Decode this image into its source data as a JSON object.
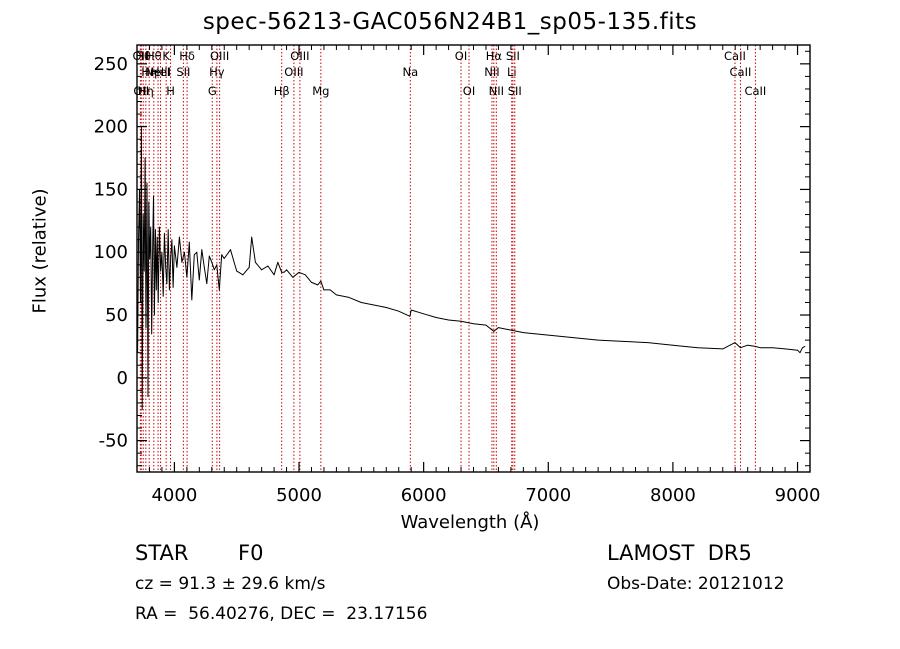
{
  "title": "spec-56213-GAC056N24B1_sp05-135.fits",
  "info": {
    "class_label": "STAR",
    "subclass_label": "F0",
    "survey_label": "LAMOST  DR5",
    "redshift_text": "cz = 91.3 ± 29.6 km/s",
    "obsdate_text": "Obs-Date: 20121012",
    "coords_text": "RA =  56.40276, DEC =  23.17156"
  },
  "chart_data": {
    "type": "line",
    "title": "spec-56213-GAC056N24B1_sp05-135.fits",
    "xlabel": "Wavelength (Å)",
    "ylabel": "Flux (relative)",
    "xlim": [
      3700,
      9100
    ],
    "ylim": [
      -75,
      265
    ],
    "x_ticks": [
      4000,
      5000,
      6000,
      7000,
      8000,
      9000
    ],
    "y_ticks": [
      -50,
      0,
      50,
      100,
      150,
      200,
      250
    ],
    "line_color": "#000000",
    "marker_color": "#cc0000",
    "series": [
      {
        "x": [
          3705,
          3712,
          3720,
          3728,
          3735,
          3742,
          3750,
          3758,
          3765,
          3772,
          3780,
          3788,
          3795,
          3802,
          3810,
          3818,
          3825,
          3832,
          3840,
          3848,
          3855,
          3862,
          3870,
          3880,
          3890,
          3900,
          3910,
          3920,
          3930,
          3940,
          3950,
          3960,
          3970,
          3980,
          3990,
          4000,
          4020,
          4040,
          4060,
          4080,
          4100,
          4120,
          4140,
          4160,
          4180,
          4200,
          4220,
          4240,
          4260,
          4280,
          4300,
          4320,
          4340,
          4360,
          4380,
          4400,
          4450,
          4500,
          4550,
          4600,
          4620,
          4650,
          4700,
          4750,
          4800,
          4830,
          4861,
          4880,
          4900,
          4950,
          5000,
          5050,
          5100,
          5150,
          5175,
          5200,
          5250,
          5300,
          5400,
          5500,
          5600,
          5700,
          5800,
          5890,
          5900,
          6000,
          6100,
          6200,
          6300,
          6400,
          6500,
          6563,
          6600,
          6700,
          6800,
          6900,
          7000,
          7200,
          7400,
          7600,
          7800,
          8000,
          8200,
          8400,
          8498,
          8542,
          8600,
          8662,
          8700,
          8800,
          8900,
          9000,
          9020,
          9040,
          9060
        ],
        "y": [
          20,
          110,
          150,
          60,
          200,
          -25,
          130,
          85,
          175,
          40,
          155,
          -15,
          140,
          95,
          120,
          35,
          100,
          145,
          50,
          118,
          70,
          112,
          60,
          120,
          85,
          100,
          65,
          115,
          88,
          75,
          118,
          70,
          96,
          110,
          72,
          105,
          88,
          112,
          92,
          100,
          80,
          108,
          62,
          98,
          100,
          78,
          102,
          88,
          75,
          97,
          92,
          86,
          90,
          70,
          98,
          95,
          102,
          85,
          82,
          88,
          112,
          92,
          86,
          89,
          82,
          92,
          84,
          84,
          86,
          80,
          84,
          82,
          76,
          74,
          77,
          70,
          70,
          66,
          64,
          60,
          58,
          56,
          53,
          49,
          54,
          51,
          48,
          46,
          45,
          43,
          42,
          37,
          40,
          38,
          36,
          35,
          34,
          32,
          30,
          29,
          28,
          26,
          24,
          23,
          28,
          24,
          26,
          25,
          24,
          24,
          23,
          22,
          20,
          24,
          25
        ]
      }
    ],
    "line_markers": [
      {
        "x": 3727,
        "row": 1,
        "label": "OII"
      },
      {
        "x": 3734,
        "row": 3,
        "label": "OII"
      },
      {
        "x": 3750,
        "row": 1,
        "label": "Hθ"
      },
      {
        "x": 3771,
        "row": 3,
        "label": "Hη"
      },
      {
        "x": 3798,
        "row": 2,
        "label": "Hη"
      },
      {
        "x": 3835,
        "row": 1,
        "label": "Hθ"
      },
      {
        "x": 3869,
        "row": 2,
        "label": "NeIII"
      },
      {
        "x": 3889,
        "row": 2,
        "label": "HeI"
      },
      {
        "x": 3934,
        "row": 1,
        "label": "K"
      },
      {
        "x": 3969,
        "row": 3,
        "label": "H"
      },
      {
        "x": 4072,
        "row": 2,
        "label": "SII"
      },
      {
        "x": 4102,
        "row": 1,
        "label": "Hδ"
      },
      {
        "x": 4304,
        "row": 3,
        "label": "G"
      },
      {
        "x": 4341,
        "row": 2,
        "label": "Hγ"
      },
      {
        "x": 4363,
        "row": 1,
        "label": "OIII"
      },
      {
        "x": 4861,
        "row": 3,
        "label": "Hβ"
      },
      {
        "x": 4959,
        "row": 2,
        "label": "OIII"
      },
      {
        "x": 5007,
        "row": 1,
        "label": "OIII"
      },
      {
        "x": 5175,
        "row": 3,
        "label": "Mg"
      },
      {
        "x": 5893,
        "row": 2,
        "label": "Na"
      },
      {
        "x": 6300,
        "row": 1,
        "label": "OI"
      },
      {
        "x": 6364,
        "row": 3,
        "label": "OI"
      },
      {
        "x": 6548,
        "row": 2,
        "label": "NII"
      },
      {
        "x": 6563,
        "row": 1,
        "label": "Hα"
      },
      {
        "x": 6583,
        "row": 3,
        "label": "NII"
      },
      {
        "x": 6707,
        "row": 2,
        "label": "Li"
      },
      {
        "x": 6716,
        "row": 1,
        "label": "SII"
      },
      {
        "x": 6731,
        "row": 3,
        "label": "SII"
      },
      {
        "x": 8498,
        "row": 1,
        "label": "CaII"
      },
      {
        "x": 8542,
        "row": 2,
        "label": "CaII"
      },
      {
        "x": 8662,
        "row": 3,
        "label": "CaII"
      }
    ]
  }
}
